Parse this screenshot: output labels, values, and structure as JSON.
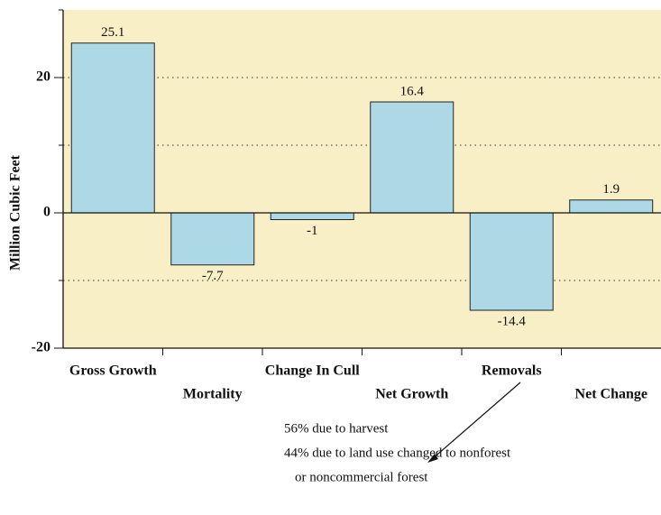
{
  "chart_data": {
    "type": "bar",
    "y_label": "Million Cubic Feet",
    "categories": [
      "Gross Growth",
      "Mortality",
      "Change In Cull",
      "Net Growth",
      "Removals",
      "Net Change"
    ],
    "values": [
      25.1,
      -7.7,
      -1,
      16.4,
      -14.4,
      1.9
    ],
    "color": "#add8e6",
    "background": "#f8efc6",
    "ylim": [
      -20,
      30
    ],
    "yticks": [
      -20,
      0,
      20
    ],
    "minor_yticks": [
      -10,
      10
    ],
    "grid": true,
    "annotations": [
      "56% due to harvest",
      "44% due to land use changed to nonforest",
      "or noncommercial forest"
    ]
  }
}
